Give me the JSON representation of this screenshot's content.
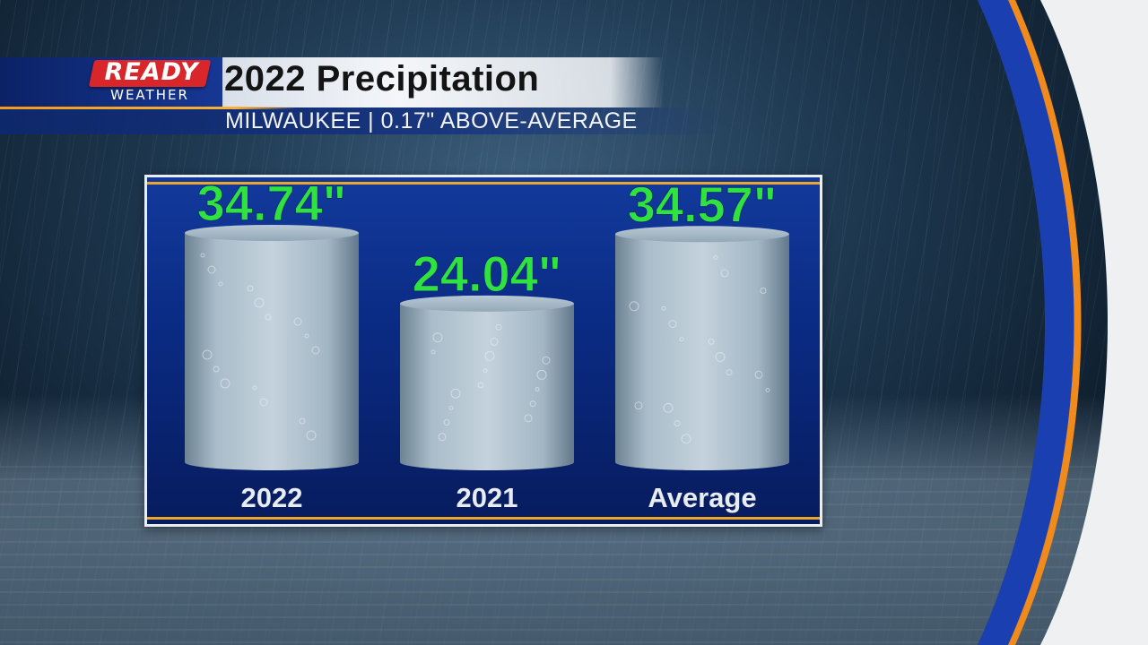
{
  "header": {
    "logo_ready": "READY",
    "logo_weather": "WEATHER",
    "title": "2022 Precipitation",
    "subtitle": "MILWAUKEE | 0.17\" ABOVE-AVERAGE"
  },
  "colors": {
    "value_text": "#2fe23d",
    "label_text": "#e8ebef",
    "panel_blue": "#0a2a82",
    "accent_orange": "#e9a52c",
    "logo_red": "#d9262b"
  },
  "chart_data": {
    "type": "bar",
    "categories": [
      "2022",
      "2021",
      "Average"
    ],
    "values": [
      34.74,
      24.04,
      34.57
    ],
    "value_labels": [
      "34.74\"",
      "24.04\"",
      "34.57\""
    ],
    "title": "2022 Precipitation",
    "xlabel": "",
    "ylabel": "",
    "grid": false,
    "legend": "none"
  }
}
